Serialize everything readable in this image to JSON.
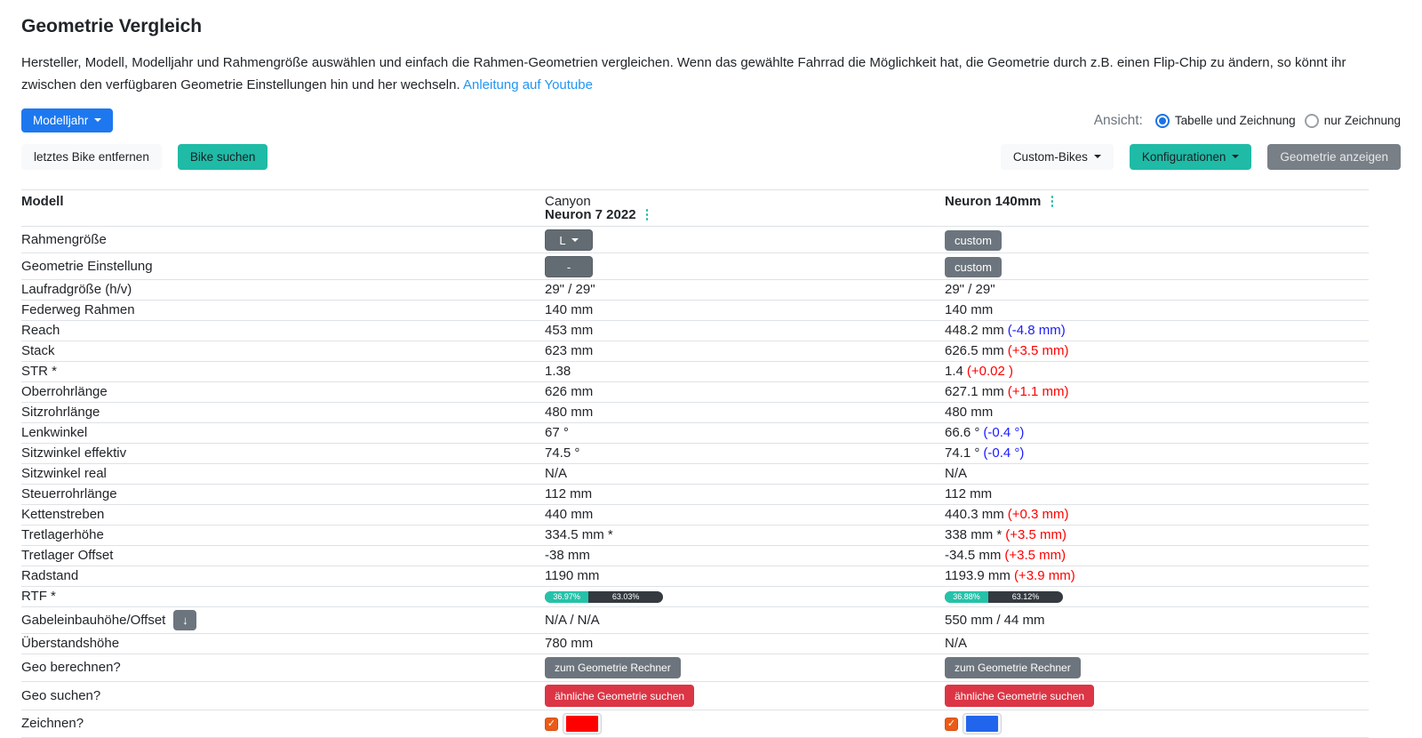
{
  "page": {
    "title": "Geometrie Vergleich",
    "description": "Hersteller, Modell, Modelljahr und Rahmengröße auswählen und einfach die Rahmen-Geometrien vergleichen. Wenn das gewählte Fahrrad die Möglichkeit hat, die Geometrie durch z.B. einen Flip-Chip zu ändern, so könnt ihr zwischen den verfügbaren Geometrie Einstellungen hin und her wechseln. ",
    "youtube_link": "Anleitung auf Youtube"
  },
  "toolbar": {
    "modelljahr": "Modelljahr",
    "remove_last_bike": "letztes Bike entfernen",
    "search_bike": "Bike suchen",
    "ansicht_label": "Ansicht:",
    "view_options": [
      {
        "label": "Tabelle und Zeichnung",
        "state_class": "radio-on"
      },
      {
        "label": "nur Zeichnung",
        "state_class": "radio-off"
      }
    ],
    "custom_bikes": "Custom-Bikes",
    "konfigurationen": "Konfigurationen",
    "geometrie_anzeigen": "Geometrie anzeigen"
  },
  "colors": {
    "accent_teal": "#1fbba6",
    "accent_blue": "#1d78f0",
    "delta_negative": "#1a1aff",
    "delta_positive": "#ff0000",
    "danger_red": "#dc3545"
  },
  "table": {
    "header": {
      "label": "Modell",
      "bike1_brand": "Canyon",
      "bike1_model": "Neuron 7 2022",
      "bike2_model": "Neuron 140mm",
      "menu_icon": "⋮"
    },
    "rows": {
      "rahmengroesse": {
        "label": "Rahmengröße",
        "b1_button": "L",
        "b2_button": "custom"
      },
      "geo_einstellung": {
        "label": "Geometrie Einstellung",
        "b1_button": "-",
        "b2_button": "custom"
      },
      "laufradgroesse": {
        "label": "Laufradgröße (h/v)",
        "b1": "29\" / 29\"",
        "b2": "29\" / 29\""
      },
      "federweg": {
        "label": "Federweg Rahmen",
        "b1": "140 mm",
        "b2": "140 mm"
      },
      "reach": {
        "label": "Reach",
        "b1": "453 mm",
        "b2": "448.2 mm",
        "b2_delta": "(-4.8 mm)",
        "b2_delta_class": "delta-blue"
      },
      "stack": {
        "label": "Stack",
        "b1": "623 mm",
        "b2": "626.5 mm",
        "b2_delta": "(+3.5 mm)",
        "b2_delta_class": "delta-red"
      },
      "str": {
        "label": "STR *",
        "b1": "1.38",
        "b2": "1.4",
        "b2_delta": "(+0.02 )",
        "b2_delta_class": "delta-red"
      },
      "oberrohr": {
        "label": "Oberrohrlänge",
        "b1": "626 mm",
        "b2": "627.1 mm",
        "b2_delta": "(+1.1 mm)",
        "b2_delta_class": "delta-red"
      },
      "sitzrohr": {
        "label": "Sitzrohrlänge",
        "b1": "480 mm",
        "b2": "480 mm"
      },
      "lenkwinkel": {
        "label": "Lenkwinkel",
        "b1": "67 °",
        "b2": "66.6 °",
        "b2_delta": "(-0.4 °)",
        "b2_delta_class": "delta-blue"
      },
      "sitzwinkel_eff": {
        "label": "Sitzwinkel effektiv",
        "b1": "74.5 °",
        "b2": "74.1 °",
        "b2_delta": "(-0.4 °)",
        "b2_delta_class": "delta-blue"
      },
      "sitzwinkel_real": {
        "label": "Sitzwinkel real",
        "b1": "N/A",
        "b2": "N/A"
      },
      "steuerrohr": {
        "label": "Steuerrohrlänge",
        "b1": "112 mm",
        "b2": "112 mm"
      },
      "kettenstreben": {
        "label": "Kettenstreben",
        "b1": "440 mm",
        "b2": "440.3 mm",
        "b2_delta": "(+0.3 mm)",
        "b2_delta_class": "delta-red"
      },
      "tretlagerhoehe": {
        "label": "Tretlagerhöhe",
        "b1": "334.5 mm *",
        "b2": "338 mm *",
        "b2_delta": "(+3.5 mm)",
        "b2_delta_class": "delta-red"
      },
      "tretlager_offset": {
        "label": "Tretlager Offset",
        "b1": "-38 mm",
        "b2": "-34.5 mm",
        "b2_delta": "(+3.5 mm)",
        "b2_delta_class": "delta-red"
      },
      "radstand": {
        "label": "Radstand",
        "b1": "1190 mm",
        "b2": "1193.9 mm",
        "b2_delta": "(+3.9 mm)",
        "b2_delta_class": "delta-red"
      },
      "rtf": {
        "label": "RTF *",
        "b1_front": "36.97%",
        "b1_rear": "63.03%",
        "b2_front": "36.88%",
        "b2_rear": "63.12%"
      },
      "gabel": {
        "label": "Gabeleinbauhöhe/Offset",
        "icon": "↓",
        "b1": "N/A / N/A",
        "b2": "550 mm / 44 mm"
      },
      "ueberstand": {
        "label": "Überstandshöhe",
        "b1": "780 mm",
        "b2": "N/A"
      },
      "geo_berechnen": {
        "label": "Geo berechnen?",
        "button_label": "zum Geometrie Rechner"
      },
      "geo_suchen": {
        "label": "Geo suchen?",
        "button_label": "ähnliche Geometrie suchen"
      },
      "zeichnen": {
        "label": "Zeichnen?",
        "check_icon": "✓",
        "b1_color": "#ff0000",
        "b2_color": "#2065ec"
      }
    }
  }
}
